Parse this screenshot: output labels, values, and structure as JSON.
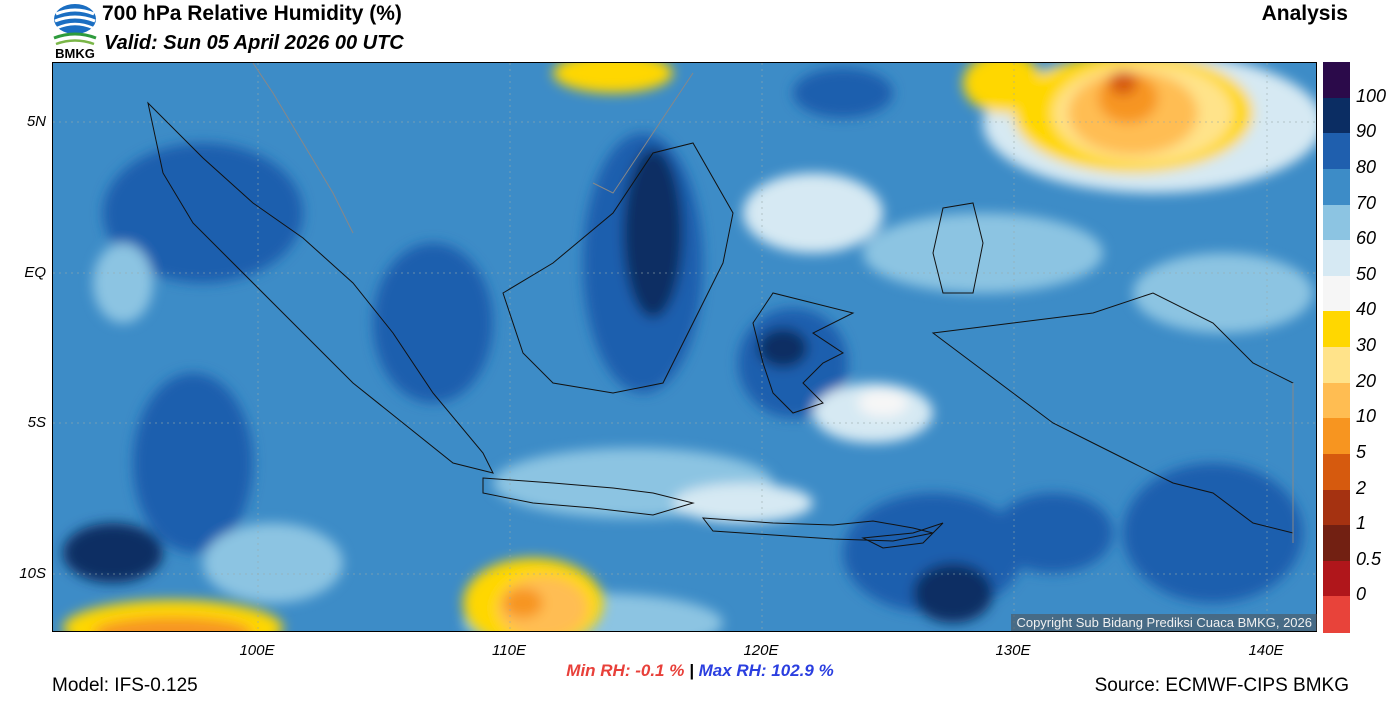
{
  "header": {
    "title": "700 hPa Relative Humidity (%)",
    "valid": "Valid: Sun 05 April 2026 00 UTC",
    "product": "Analysis",
    "logo_text": "BMKG"
  },
  "map": {
    "variable": "relative_humidity_700hPa",
    "lat_labels": [
      "5N",
      "EQ",
      "5S",
      "10S"
    ],
    "lon_labels": [
      "100E",
      "110E",
      "120E",
      "130E",
      "140E"
    ],
    "copyright": "Copyright Sub Bidang Prediksi Cuaca BMKG, 2026"
  },
  "stats": {
    "min_rh": "Min RH:  -0.1 %",
    "separator": "|",
    "max_rh": "Max RH: 102.9 %"
  },
  "footer": {
    "model": "Model: IFS-0.125",
    "source": "Source: ECMWF-CIPS BMKG"
  },
  "colorbar": {
    "labels": [
      "100",
      "90",
      "80",
      "70",
      "60",
      "50",
      "40",
      "30",
      "20",
      "10",
      "5",
      "2",
      "1",
      "0.5",
      "0"
    ],
    "colors": [
      "#2b0a4a",
      "#0b2d63",
      "#1f5fae",
      "#3d8cc7",
      "#8cc4e2",
      "#d6e9f3",
      "#f6f6f6",
      "#ffd700",
      "#ffe38a",
      "#ffbd52",
      "#f79520",
      "#d65a0e",
      "#a53211",
      "#722012",
      "#b0161b",
      "#e8433a"
    ]
  }
}
